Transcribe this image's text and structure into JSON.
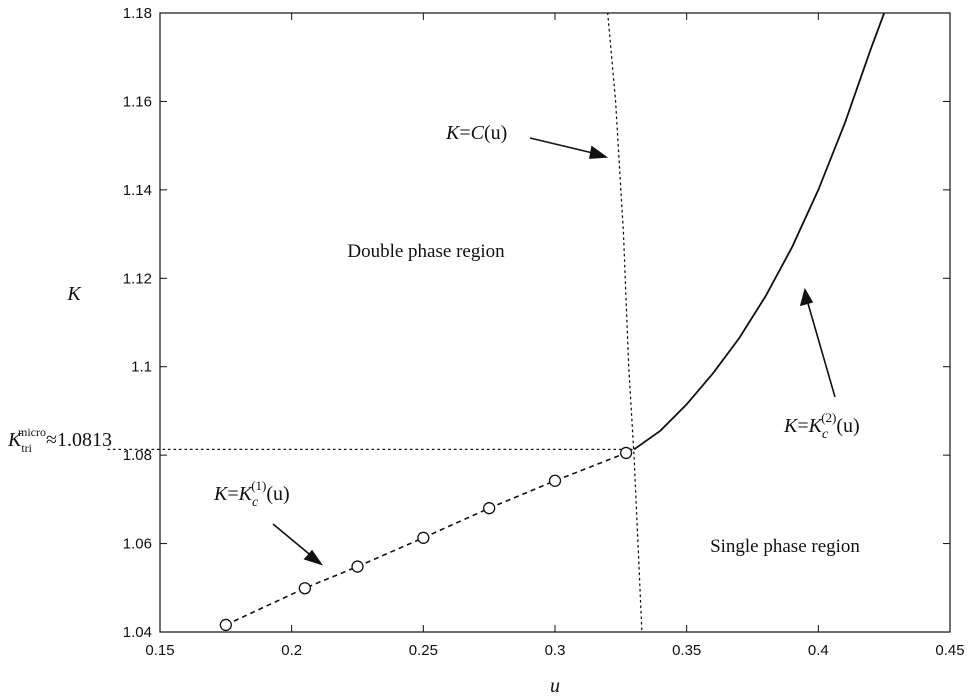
{
  "chart_data": {
    "type": "line",
    "xlabel": "u",
    "ylabel": "K",
    "xlim": [
      0.15,
      0.45
    ],
    "ylim": [
      1.04,
      1.18
    ],
    "x_ticks": [
      "0.15",
      "0.2",
      "0.25",
      "0.3",
      "0.35",
      "0.4",
      "0.45"
    ],
    "y_ticks": [
      "1.04",
      "1.06",
      "1.08",
      "1.1",
      "1.12",
      "1.14",
      "1.16",
      "1.18"
    ],
    "grid": false,
    "series": [
      {
        "name": "K=Kc(1)(u)",
        "style": "dashed",
        "marker": "circle",
        "x": [
          0.175,
          0.205,
          0.225,
          0.25,
          0.275,
          0.3,
          0.327
        ],
        "y": [
          1.0416,
          1.0499,
          1.0548,
          1.0613,
          1.068,
          1.0742,
          1.0805
        ]
      },
      {
        "name": "K=Kc(2)(u)",
        "style": "solid",
        "x": [
          0.33,
          0.34,
          0.35,
          0.36,
          0.37,
          0.38,
          0.39,
          0.4,
          0.41,
          0.42,
          0.425
        ],
        "y": [
          1.0813,
          1.0855,
          1.0915,
          1.0985,
          1.1065,
          1.116,
          1.127,
          1.14,
          1.155,
          1.172,
          1.18
        ]
      },
      {
        "name": "K=C(u)",
        "style": "dotted",
        "x": [
          0.32,
          0.323,
          0.326,
          0.328,
          0.33,
          0.3315,
          0.333
        ],
        "y": [
          1.18,
          1.16,
          1.13,
          1.1,
          1.08,
          1.06,
          1.04
        ]
      }
    ],
    "reference_line": {
      "style": "dotted",
      "y": 1.0813,
      "x_range": [
        0.15,
        0.33
      ]
    },
    "annotations": {
      "c_curve": {
        "prefix": "K",
        "eq": "=",
        "func": "C",
        "arg": "(u)"
      },
      "kc1_curve": {
        "prefix": "K",
        "eq": "=",
        "K": "K",
        "sub": "c",
        "sup": "(1)",
        "arg": "(u)"
      },
      "kc2_curve": {
        "prefix": "K",
        "eq": "=",
        "K": "K",
        "sub": "c",
        "sup": "(2)",
        "arg": "(u)"
      },
      "double_region": "Double phase region",
      "single_region": "Single phase region",
      "tricritical": {
        "K": "K",
        "sub": "tri",
        "sup": "micro",
        "rest": "≈1.0813"
      }
    }
  }
}
